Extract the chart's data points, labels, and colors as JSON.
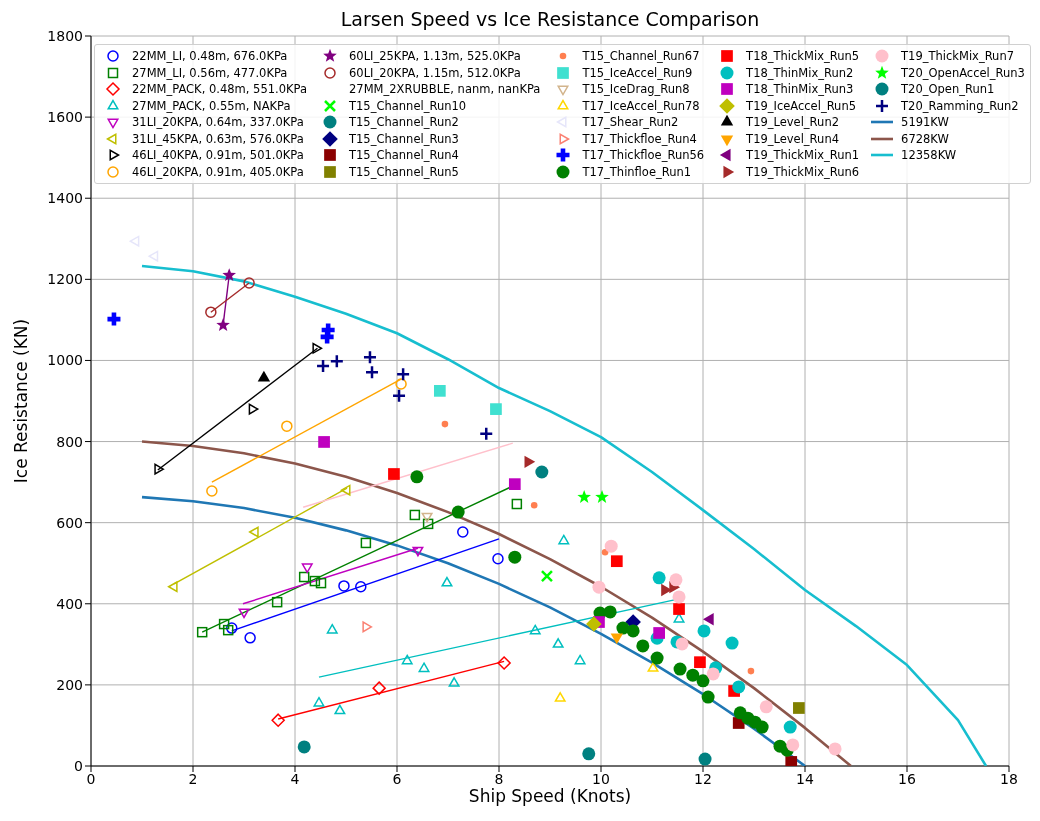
{
  "chart_data": {
    "type": "scatter",
    "title": "Larsen Speed vs Ice Resistance Comparison",
    "xlabel": "Ship Speed (Knots)",
    "ylabel": "Ice Resistance (KN)",
    "xlim": [
      0,
      18
    ],
    "ylim": [
      0,
      1800
    ],
    "xticks": [
      0,
      2,
      4,
      6,
      8,
      10,
      12,
      14,
      16,
      18
    ],
    "yticks": [
      0,
      200,
      400,
      600,
      800,
      1000,
      1200,
      1400,
      1600,
      1800
    ],
    "grid": true,
    "legend": "top",
    "series": [
      {
        "name": "22MM_LI, 0.48m, 676.0KPa",
        "color": "#0000ff",
        "marker": "circle-open",
        "x": [
          2.76,
          3.12,
          4.96,
          5.29,
          7.29,
          7.98
        ],
        "values": [
          340,
          316,
          444,
          442,
          577,
          511
        ]
      },
      {
        "name": "27MM_LI, 0.56m, 477.0KPa",
        "color": "#008000",
        "marker": "square-open",
        "x": [
          2.18,
          2.61,
          2.69,
          3.65,
          4.18,
          4.39,
          4.51,
          5.39,
          6.35,
          6.61,
          8.35
        ],
        "values": [
          330,
          350,
          335,
          404,
          466,
          456,
          451,
          550,
          619,
          597,
          646
        ]
      },
      {
        "name": "22MM_PACK, 0.48m, 551.0KPa",
        "color": "#ff0000",
        "marker": "diamond-open",
        "x": [
          3.67,
          5.65,
          8.1
        ],
        "values": [
          113,
          192,
          254
        ]
      },
      {
        "name": "27MM_PACK, 0.55m, NAKPa",
        "color": "#00bfbf",
        "marker": "triangle-open",
        "x": [
          4.47,
          4.88,
          4.73,
          6.2,
          6.53,
          7.12,
          6.98,
          8.71,
          9.27,
          9.16,
          9.59,
          11.53
        ],
        "values": [
          155,
          136,
          335,
          259,
          240,
          204,
          451,
          333,
          555,
          300,
          259,
          362
        ]
      },
      {
        "name": "31LI_20KPA, 0.64m, 337.0KPa",
        "color": "#bf00bf",
        "marker": "triangle-down-open",
        "x": [
          3.0,
          4.24,
          6.41
        ],
        "values": [
          380,
          491,
          532
        ]
      },
      {
        "name": "31LI_45KPA, 0.63m, 576.0KPa",
        "color": "#bfbf00",
        "marker": "triangle-left-open",
        "x": [
          1.63,
          3.22,
          5.02
        ],
        "values": [
          442,
          577,
          680
        ]
      },
      {
        "name": "46LI_40KPA, 0.91m, 501.0KPa",
        "color": "#000000",
        "marker": "triangle-right-open",
        "x": [
          1.31,
          3.16,
          4.41
        ],
        "values": [
          732,
          880,
          1030
        ]
      },
      {
        "name": "46LI_20KPA, 0.91m, 405.0KPa",
        "color": "#ffa500",
        "marker": "circle-open",
        "x": [
          2.37,
          3.84,
          6.08
        ],
        "values": [
          678,
          838,
          942
        ]
      },
      {
        "name": "60LI_25KPA, 1.13m, 525.0KPa",
        "color": "#800080",
        "marker": "star",
        "x": [
          2.71,
          2.59
        ],
        "values": [
          1210,
          1087
        ]
      },
      {
        "name": "60LI_20KPA, 1.15m, 512.0KPa",
        "color": "#a52a2a",
        "marker": "circle-open",
        "x": [
          2.35,
          3.1
        ],
        "values": [
          1119,
          1191
        ]
      },
      {
        "name": "27MM_2XRUBBLE, nanm, nanKPa",
        "marker": "none"
      },
      {
        "name": "T15_Channel_Run10",
        "color": "#00ff00",
        "marker": "x",
        "x": [
          8.94
        ],
        "values": [
          468
        ]
      },
      {
        "name": "T15_Channel_Run2",
        "color": "#008080",
        "marker": "circle",
        "x": [
          8.84,
          4.18
        ],
        "values": [
          725,
          47
        ]
      },
      {
        "name": "T15_Channel_Run3",
        "color": "#000080",
        "marker": "diamond",
        "x": [
          10.63
        ],
        "values": [
          355
        ]
      },
      {
        "name": "T15_Channel_Run4",
        "color": "#8b0000",
        "marker": "square",
        "x": [
          12.7,
          13.73
        ],
        "values": [
          106,
          10
        ]
      },
      {
        "name": "T15_Channel_Run5",
        "color": "#808000",
        "marker": "square",
        "x": [
          13.88
        ],
        "values": [
          143
        ]
      },
      {
        "name": "T15_Channel_Run67",
        "color": "#ff7f50",
        "marker": "point",
        "x": [
          6.94,
          8.69,
          10.08,
          12.94
        ],
        "values": [
          843,
          643,
          527,
          234
        ]
      },
      {
        "name": "T15_IceAccel_Run9",
        "color": "#40e0d0",
        "marker": "square",
        "x": [
          6.84,
          7.94
        ],
        "values": [
          925,
          880
        ]
      },
      {
        "name": "T15_IceDrag_Run8",
        "color": "#d2b48c",
        "marker": "triangle-down-open",
        "x": [
          6.59
        ],
        "values": [
          616
        ]
      },
      {
        "name": "T17_IceAccel_Run78",
        "color": "#ffd700",
        "marker": "triangle-open",
        "x": [
          9.2,
          11.02
        ],
        "values": [
          167,
          241
        ]
      },
      {
        "name": "T17_Shear_Run2",
        "color": "#e6e6fa",
        "marker": "triangle-left-open",
        "x": [
          0.88,
          1.25
        ],
        "values": [
          1294,
          1257
        ]
      },
      {
        "name": "T17_Thickfloe_Run4",
        "color": "#fa8072",
        "marker": "triangle-right-open",
        "x": [
          5.39
        ],
        "values": [
          343
        ]
      },
      {
        "name": "T17_Thickfloe_Run56",
        "color": "#0000ff",
        "marker": "cross",
        "x": [
          0.45,
          4.65,
          4.63
        ],
        "values": [
          1102,
          1075,
          1058
        ]
      },
      {
        "name": "T17_Thinfloe_Run1",
        "color": "#008000",
        "marker": "circle",
        "x": [
          6.39,
          7.2,
          8.31,
          9.98,
          10.18,
          10.43,
          10.63,
          10.82,
          11.1,
          11.55,
          11.8,
          12.0,
          12.1,
          12.73,
          12.88,
          13.02,
          13.16,
          13.51,
          13.65
        ],
        "values": [
          713,
          626,
          515,
          377,
          380,
          340,
          333,
          296,
          266,
          239,
          224,
          210,
          170,
          131,
          118,
          108,
          96,
          49,
          39
        ]
      },
      {
        "name": "T18_ThickMix_Run5",
        "color": "#ff0000",
        "marker": "square",
        "x": [
          5.94,
          10.31,
          11.53,
          11.94,
          12.61
        ],
        "values": [
          720,
          505,
          387,
          256,
          185
        ]
      },
      {
        "name": "T18_ThinMix_Run2",
        "color": "#00bfbf",
        "marker": "circle",
        "x": [
          11.14,
          11.1,
          11.49,
          12.02,
          12.57,
          12.25,
          12.7,
          13.71
        ],
        "values": [
          464,
          315,
          306,
          333,
          303,
          242,
          195,
          96
        ]
      },
      {
        "name": "T18_ThinMix_Run3",
        "color": "#bf00bf",
        "marker": "square",
        "x": [
          4.57,
          8.31,
          11.14,
          9.96
        ],
        "values": [
          799,
          695,
          328,
          355
        ]
      },
      {
        "name": "T19_IceAccel_Run5",
        "color": "#bfbf00",
        "marker": "diamond",
        "x": [
          9.86
        ],
        "values": [
          350
        ]
      },
      {
        "name": "T19_Level_Run2",
        "color": "#000000",
        "marker": "triangle",
        "x": [
          3.39
        ],
        "values": [
          957
        ]
      },
      {
        "name": "T19_Level_Run4",
        "color": "#ffa500",
        "marker": "triangle-down",
        "x": [
          10.31
        ],
        "values": [
          318
        ]
      },
      {
        "name": "T19_ThickMix_Run1",
        "color": "#800080",
        "marker": "triangle-left",
        "x": [
          12.14
        ],
        "values": [
          362
        ]
      },
      {
        "name": "T19_ThickMix_Run6",
        "color": "#a52a2a",
        "marker": "triangle-right",
        "x": [
          8.57,
          11.25,
          11.41
        ],
        "values": [
          750,
          434,
          441
        ]
      },
      {
        "name": "T19_ThickMix_Run7",
        "color": "#ffc0cb",
        "marker": "circle",
        "x": [
          10.2,
          9.96,
          11.47,
          11.53,
          11.59,
          12.2,
          13.24,
          13.76,
          14.59
        ],
        "values": [
          542,
          441,
          459,
          417,
          301,
          227,
          146,
          52,
          42
        ]
      },
      {
        "name": "T20_OpenAccel_Run3",
        "color": "#00ff00",
        "marker": "star",
        "x": [
          9.67,
          10.02
        ],
        "values": [
          663,
          663
        ]
      },
      {
        "name": "T20_Open_Run1",
        "color": "#008080",
        "marker": "circle",
        "x": [
          9.76,
          12.04
        ],
        "values": [
          30,
          17
        ]
      },
      {
        "name": "T20_Ramming_Run2",
        "color": "#000080",
        "marker": "plus",
        "x": [
          4.55,
          4.82,
          5.47,
          5.51,
          6.12,
          6.04,
          7.75
        ],
        "values": [
          986,
          998,
          1008,
          971,
          966,
          913,
          819
        ]
      },
      {
        "name": "5191KW",
        "color": "#1f77b4",
        "type": "line",
        "x": [
          1,
          2,
          3,
          4,
          5,
          6,
          7,
          8,
          9,
          10,
          11,
          12,
          13,
          14
        ],
        "values": [
          663,
          653,
          636,
          612,
          581,
          544,
          500,
          449,
          391,
          326,
          255,
          177,
          92,
          0
        ]
      },
      {
        "name": "6728KW",
        "color": "#8c564b",
        "type": "line",
        "x": [
          1,
          2,
          3,
          4,
          5,
          6,
          7,
          8,
          9,
          10,
          11,
          12,
          13,
          14,
          14.9
        ],
        "values": [
          800,
          789,
          771,
          746,
          713,
          673,
          626,
          572,
          510,
          442,
          366,
          282,
          192,
          94,
          0
        ]
      },
      {
        "name": "12358KW",
        "color": "#17becf",
        "type": "line",
        "x": [
          1,
          2,
          3,
          4,
          5,
          6,
          7,
          8,
          9,
          10,
          11,
          12,
          13,
          14,
          15,
          16,
          17,
          17.55
        ],
        "values": [
          1233,
          1220,
          1195,
          1157,
          1115,
          1067,
          1003,
          932,
          875,
          811,
          725,
          631,
          535,
          434,
          345,
          249,
          113,
          0
        ]
      },
      {
        "color": "#0000ff",
        "type": "line",
        "x": [
          2.76,
          8.0
        ],
        "values": [
          333,
          560
        ]
      },
      {
        "color": "#008000",
        "type": "line",
        "x": [
          2.18,
          8.35
        ],
        "values": [
          330,
          695
        ]
      },
      {
        "color": "#ff0000",
        "type": "line",
        "x": [
          3.67,
          8.1
        ],
        "values": [
          116,
          258
        ]
      },
      {
        "color": "#00bfbf",
        "type": "line",
        "x": [
          4.47,
          11.53
        ],
        "values": [
          219,
          412
        ]
      },
      {
        "color": "#bf00bf",
        "type": "line",
        "x": [
          2.98,
          6.41
        ],
        "values": [
          400,
          537
        ]
      },
      {
        "color": "#bfbf00",
        "type": "line",
        "x": [
          1.63,
          5.02
        ],
        "values": [
          449,
          685
        ]
      },
      {
        "color": "#000000",
        "type": "line",
        "x": [
          1.31,
          4.44
        ],
        "values": [
          730,
          1030
        ]
      },
      {
        "color": "#ffa500",
        "type": "line",
        "x": [
          2.37,
          6.08
        ],
        "values": [
          700,
          954
        ]
      },
      {
        "color": "#800080",
        "type": "line",
        "x": [
          2.71,
          2.59
        ],
        "values": [
          1210,
          1087
        ]
      },
      {
        "color": "#a52a2a",
        "type": "line",
        "x": [
          2.35,
          3.1
        ],
        "values": [
          1119,
          1191
        ]
      },
      {
        "color": "#ffc0cb",
        "type": "line",
        "x": [
          4.16,
          8.27
        ],
        "values": [
          638,
          796
        ]
      }
    ]
  }
}
